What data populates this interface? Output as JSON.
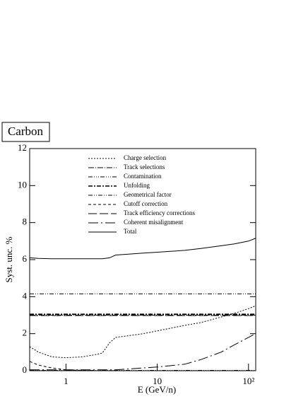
{
  "chart_data": {
    "type": "line",
    "title": "Carbon",
    "xlabel": "E (GeV/n)",
    "ylabel": "Syst. unc. %",
    "x": [
      0.4,
      0.5,
      0.7,
      1,
      1.5,
      2,
      2.5,
      3,
      3.5,
      5,
      7,
      10,
      20,
      30,
      50,
      70,
      100,
      119
    ],
    "xscale": "log",
    "xlim": [
      0.4,
      120
    ],
    "xticks": [
      1,
      10,
      {
        "value": 100,
        "label": "10²"
      }
    ],
    "ylim": [
      0,
      12
    ],
    "yticks": [
      0,
      2,
      4,
      6,
      8,
      10,
      12
    ],
    "legend": "top",
    "series": [
      {
        "name": "Charge selection",
        "color": "#000000",
        "dash": "2,2",
        "values": [
          1.3,
          1.0,
          0.75,
          0.7,
          0.75,
          0.85,
          0.95,
          1.5,
          1.8,
          1.9,
          2.0,
          2.15,
          2.45,
          2.6,
          2.9,
          3.1,
          3.35,
          3.5
        ]
      },
      {
        "name": "Track selections",
        "color": "#000000",
        "dash": "8,2,1,2",
        "values": [
          3.0,
          3.0,
          3.0,
          3.0,
          3.0,
          3.0,
          3.0,
          3.0,
          3.0,
          3.0,
          3.0,
          3.0,
          3.0,
          3.0,
          3.0,
          3.0,
          3.0,
          3.0
        ]
      },
      {
        "name": "Contamination",
        "color": "#000000",
        "dash": "6,2,1,2,1,2,1,2",
        "values": [
          0.02,
          0.02,
          0.02,
          0.02,
          0.02,
          0.02,
          0.02,
          0.02,
          0.02,
          0.02,
          0.02,
          0.02,
          0.02,
          0.02,
          0.02,
          0.02,
          0.02,
          0.02
        ]
      },
      {
        "name": "Unfolding",
        "color": "#000000",
        "dash": "6,2,2,2",
        "width": 1.6,
        "values": [
          3.05,
          3.05,
          3.05,
          3.05,
          3.05,
          3.05,
          3.05,
          3.05,
          3.05,
          3.05,
          3.05,
          3.05,
          3.05,
          3.05,
          3.05,
          3.05,
          3.05,
          3.05
        ]
      },
      {
        "name": "Geometrical factor",
        "color": "#000000",
        "dash": "6,2,1,2,1,2",
        "values": [
          4.15,
          4.15,
          4.15,
          4.15,
          4.15,
          4.15,
          4.15,
          4.15,
          4.15,
          4.15,
          4.15,
          4.15,
          4.15,
          4.15,
          4.15,
          4.15,
          4.15,
          4.15
        ]
      },
      {
        "name": "Cutoff correction",
        "color": "#000000",
        "dash": "4,3",
        "values": [
          0.5,
          0.3,
          0.15,
          0.05,
          0.02,
          0,
          0,
          0,
          0,
          0,
          0,
          0,
          0,
          0,
          0,
          0,
          0,
          0
        ]
      },
      {
        "name": "Track efficiency corrections",
        "color": "#000000",
        "dash": "12,4",
        "values": [
          2.98,
          2.98,
          2.98,
          2.98,
          2.98,
          2.98,
          2.98,
          2.98,
          2.98,
          2.98,
          2.98,
          2.98,
          2.98,
          2.98,
          2.98,
          2.98,
          2.98,
          2.98
        ]
      },
      {
        "name": "Coherent misalignment",
        "color": "#000000",
        "dash": "14,4,2,4",
        "values": [
          0.05,
          0.05,
          0.05,
          0.05,
          0.05,
          0.05,
          0.05,
          0.05,
          0.05,
          0.1,
          0.15,
          0.2,
          0.35,
          0.6,
          1.0,
          1.4,
          1.8,
          2.0
        ]
      },
      {
        "name": "Total",
        "color": "#000000",
        "dash": "none",
        "values": [
          6.1,
          6.07,
          6.05,
          6.05,
          6.05,
          6.05,
          6.05,
          6.1,
          6.25,
          6.3,
          6.35,
          6.4,
          6.5,
          6.6,
          6.75,
          6.85,
          7.0,
          7.15
        ]
      }
    ]
  }
}
